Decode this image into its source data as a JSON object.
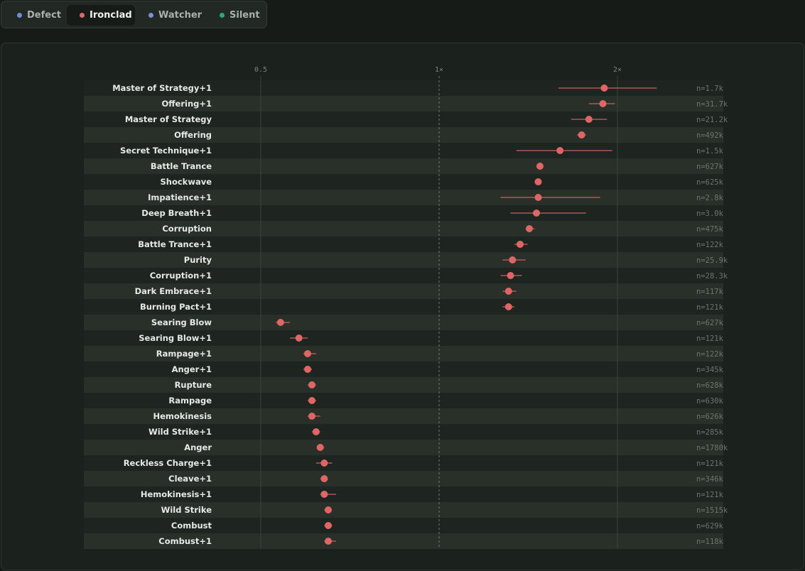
{
  "tabs": [
    {
      "label": "Defect",
      "color": "#6a8fd8",
      "active": false
    },
    {
      "label": "Ironclad",
      "color": "#e06666",
      "active": true
    },
    {
      "label": "Watcher",
      "color": "#7a8fd6",
      "active": false
    },
    {
      "label": "Silent",
      "color": "#2aa876",
      "active": false
    }
  ],
  "chart_data": {
    "type": "scatter",
    "x_scale": "log",
    "xlim": [
      0.5,
      2.5
    ],
    "x_ticks": [
      {
        "value": 0.5,
        "label": "0.5"
      },
      {
        "value": 1,
        "label": "1×"
      },
      {
        "value": 2,
        "label": "2×"
      }
    ],
    "reference_line": 1,
    "marker_color": "#e06666",
    "rows": [
      {
        "label": "Master of Strategy+1",
        "value": 1.9,
        "low": 1.59,
        "high": 2.33,
        "n": "n=1.7k"
      },
      {
        "label": "Offering+1",
        "value": 1.89,
        "low": 1.79,
        "high": 1.98,
        "n": "n=31.7k"
      },
      {
        "label": "Master of Strategy",
        "value": 1.79,
        "low": 1.67,
        "high": 1.92,
        "n": "n=21.2k"
      },
      {
        "label": "Offering",
        "value": 1.74,
        "low": 1.71,
        "high": 1.77,
        "n": "n=492k"
      },
      {
        "label": "Secret Technique+1",
        "value": 1.6,
        "low": 1.35,
        "high": 1.96,
        "n": "n=1.5k"
      },
      {
        "label": "Battle Trance",
        "value": 1.48,
        "low": 1.46,
        "high": 1.5,
        "n": "n=627k"
      },
      {
        "label": "Shockwave",
        "value": 1.47,
        "low": 1.45,
        "high": 1.49,
        "n": "n=625k"
      },
      {
        "label": "Impatience+1",
        "value": 1.47,
        "low": 1.27,
        "high": 1.87,
        "n": "n=2.8k"
      },
      {
        "label": "Deep Breath+1",
        "value": 1.46,
        "low": 1.32,
        "high": 1.77,
        "n": "n=3.0k"
      },
      {
        "label": "Corruption",
        "value": 1.42,
        "low": 1.4,
        "high": 1.45,
        "n": "n=475k"
      },
      {
        "label": "Battle Trance+1",
        "value": 1.37,
        "low": 1.34,
        "high": 1.41,
        "n": "n=122k"
      },
      {
        "label": "Purity",
        "value": 1.33,
        "low": 1.28,
        "high": 1.4,
        "n": "n=25.9k"
      },
      {
        "label": "Corruption+1",
        "value": 1.32,
        "low": 1.27,
        "high": 1.38,
        "n": "n=28.3k"
      },
      {
        "label": "Dark Embrace+1",
        "value": 1.31,
        "low": 1.28,
        "high": 1.35,
        "n": "n=117k"
      },
      {
        "label": "Burning Pact+1",
        "value": 1.31,
        "low": 1.28,
        "high": 1.34,
        "n": "n=121k"
      },
      {
        "label": "Searing Blow",
        "value": 0.54,
        "low": 0.53,
        "high": 0.56,
        "n": "n=627k"
      },
      {
        "label": "Searing Blow+1",
        "value": 0.58,
        "low": 0.56,
        "high": 0.6,
        "n": "n=121k"
      },
      {
        "label": "Rampage+1",
        "value": 0.6,
        "low": 0.59,
        "high": 0.62,
        "n": "n=122k"
      },
      {
        "label": "Anger+1",
        "value": 0.6,
        "low": 0.59,
        "high": 0.61,
        "n": "n=345k"
      },
      {
        "label": "Rupture",
        "value": 0.61,
        "low": 0.6,
        "high": 0.62,
        "n": "n=628k"
      },
      {
        "label": "Rampage",
        "value": 0.61,
        "low": 0.6,
        "high": 0.62,
        "n": "n=630k"
      },
      {
        "label": "Hemokinesis",
        "value": 0.61,
        "low": 0.6,
        "high": 0.63,
        "n": "n=626k"
      },
      {
        "label": "Wild Strike+1",
        "value": 0.62,
        "low": 0.61,
        "high": 0.63,
        "n": "n=285k"
      },
      {
        "label": "Anger",
        "value": 0.63,
        "low": 0.63,
        "high": 0.64,
        "n": "n=1780k"
      },
      {
        "label": "Reckless Charge+1",
        "value": 0.64,
        "low": 0.62,
        "high": 0.66,
        "n": "n=121k"
      },
      {
        "label": "Cleave+1",
        "value": 0.64,
        "low": 0.63,
        "high": 0.64,
        "n": "n=346k"
      },
      {
        "label": "Hemokinesis+1",
        "value": 0.64,
        "low": 0.63,
        "high": 0.67,
        "n": "n=121k"
      },
      {
        "label": "Wild Strike",
        "value": 0.65,
        "low": 0.64,
        "high": 0.65,
        "n": "n=1515k"
      },
      {
        "label": "Combust",
        "value": 0.65,
        "low": 0.64,
        "high": 0.66,
        "n": "n=629k"
      },
      {
        "label": "Combust+1",
        "value": 0.65,
        "low": 0.64,
        "high": 0.67,
        "n": "n=118k"
      }
    ]
  }
}
